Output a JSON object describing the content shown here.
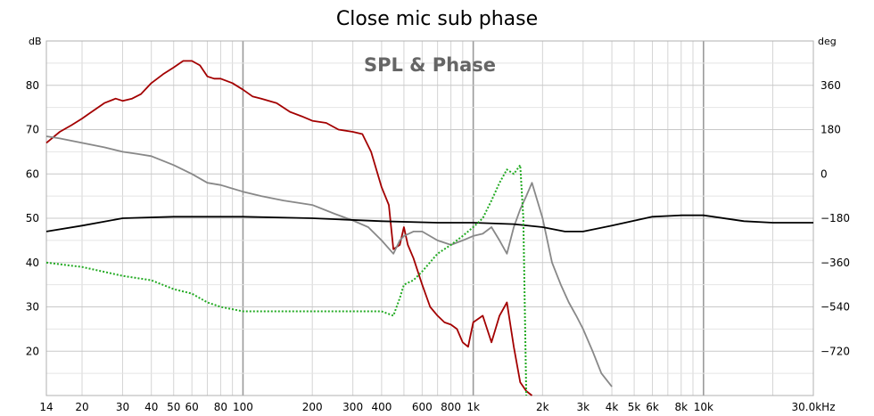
{
  "chart_data": {
    "type": "line",
    "title": "Close mic sub phase",
    "subtitle": "SPL & Phase",
    "y_left_label": "dB",
    "y_right_label": "deg",
    "x_scale": "log",
    "xlim": [
      14,
      30000
    ],
    "ylim_left": [
      10,
      90
    ],
    "ylim_right": [
      -900,
      540
    ],
    "grid": true,
    "x_ticks": [
      {
        "value": 14,
        "label": "14"
      },
      {
        "value": 20,
        "label": "20"
      },
      {
        "value": 30,
        "label": "30"
      },
      {
        "value": 40,
        "label": "40"
      },
      {
        "value": 50,
        "label": "50"
      },
      {
        "value": 60,
        "label": "60"
      },
      {
        "value": 80,
        "label": "80"
      },
      {
        "value": 100,
        "label": "100"
      },
      {
        "value": 200,
        "label": "200"
      },
      {
        "value": 300,
        "label": "300"
      },
      {
        "value": 400,
        "label": "400"
      },
      {
        "value": 600,
        "label": "600"
      },
      {
        "value": 800,
        "label": "800"
      },
      {
        "value": 1000,
        "label": "1k"
      },
      {
        "value": 2000,
        "label": "2k"
      },
      {
        "value": 3000,
        "label": "3k"
      },
      {
        "value": 4000,
        "label": "4k"
      },
      {
        "value": 5000,
        "label": "5k"
      },
      {
        "value": 6000,
        "label": "6k"
      },
      {
        "value": 8000,
        "label": "8k"
      },
      {
        "value": 10000,
        "label": "10k"
      },
      {
        "value": 30000,
        "label": "30.0kHz"
      }
    ],
    "y_left_ticks": [
      20,
      30,
      40,
      50,
      60,
      70,
      80
    ],
    "y_right_ticks": [
      360,
      180,
      0,
      -180,
      -360,
      -540,
      -720
    ],
    "series": [
      {
        "axis": "left",
        "color": "#a30000",
        "style": "solid",
        "x": [
          14,
          16,
          18,
          20,
          22,
          25,
          28,
          30,
          33,
          36,
          40,
          45,
          50,
          55,
          60,
          65,
          70,
          75,
          80,
          90,
          100,
          110,
          120,
          140,
          160,
          180,
          200,
          230,
          260,
          300,
          330,
          360,
          400,
          430,
          450,
          480,
          500,
          520,
          550,
          600,
          650,
          700,
          750,
          800,
          850,
          900,
          950,
          1000,
          1100,
          1200,
          1300,
          1400,
          1500,
          1600,
          1700,
          1800
        ],
        "y": [
          67,
          69.5,
          71,
          72.5,
          74,
          76,
          77,
          76.5,
          77,
          78,
          80.5,
          82.5,
          84,
          85.5,
          85.5,
          84.5,
          82,
          81.5,
          81.5,
          80.5,
          79,
          77.5,
          77,
          76,
          74,
          73,
          72,
          71.5,
          70,
          69.5,
          69,
          65,
          57,
          53,
          43,
          44,
          48,
          44,
          41,
          35,
          30,
          28,
          26.5,
          26,
          25,
          22,
          21,
          26.5,
          28,
          22,
          28,
          31,
          21,
          13,
          11,
          10
        ]
      },
      {
        "axis": "left",
        "color": "#888888",
        "style": "solid",
        "x": [
          14,
          16,
          20,
          25,
          30,
          35,
          40,
          50,
          60,
          70,
          80,
          100,
          120,
          150,
          200,
          250,
          300,
          350,
          400,
          450,
          480,
          500,
          550,
          600,
          700,
          800,
          900,
          1000,
          1100,
          1200,
          1300,
          1400,
          1500,
          1600,
          1700,
          1800,
          2000,
          2200,
          2400,
          2600,
          2800,
          3000,
          3300,
          3600,
          4000
        ],
        "y": [
          68.5,
          68,
          67,
          66,
          65,
          64.5,
          64,
          62,
          60,
          58,
          57.5,
          56,
          55,
          54,
          53,
          51,
          49.5,
          48,
          45,
          42,
          45,
          46,
          47,
          47,
          45,
          44,
          45,
          46,
          46.5,
          48,
          45,
          42,
          48,
          52,
          55,
          58,
          50,
          40,
          35,
          31,
          28,
          25,
          20,
          15,
          12
        ]
      },
      {
        "axis": "right",
        "color": "#000000",
        "style": "solid",
        "x": [
          14,
          20,
          30,
          50,
          100,
          200,
          400,
          700,
          1000,
          1500,
          2000,
          2500,
          3000,
          4000,
          6000,
          8000,
          10000,
          15000,
          20000,
          30000
        ],
        "y": [
          -234,
          -210,
          -180,
          -174,
          -174,
          -180,
          -192,
          -198,
          -198,
          -204,
          -216,
          -234,
          -234,
          -210,
          -174,
          -168,
          -168,
          -192,
          -198,
          -198
        ]
      },
      {
        "axis": "right",
        "color": "#22aa22",
        "style": "dotted",
        "x": [
          14,
          20,
          30,
          40,
          50,
          60,
          70,
          80,
          100,
          120,
          150,
          200,
          250,
          300,
          350,
          400,
          450,
          480,
          500,
          550,
          600,
          700,
          800,
          900,
          1000,
          1100,
          1200,
          1300,
          1400,
          1500,
          1600,
          1650,
          1700
        ],
        "y": [
          -360,
          -378,
          -414,
          -432,
          -468,
          -486,
          -522,
          -540,
          -558,
          -558,
          -558,
          -558,
          -558,
          -558,
          -558,
          -558,
          -576,
          -504,
          -450,
          -432,
          -396,
          -324,
          -288,
          -252,
          -216,
          -180,
          -108,
          -36,
          18,
          0,
          36,
          -180,
          -900
        ]
      }
    ]
  }
}
